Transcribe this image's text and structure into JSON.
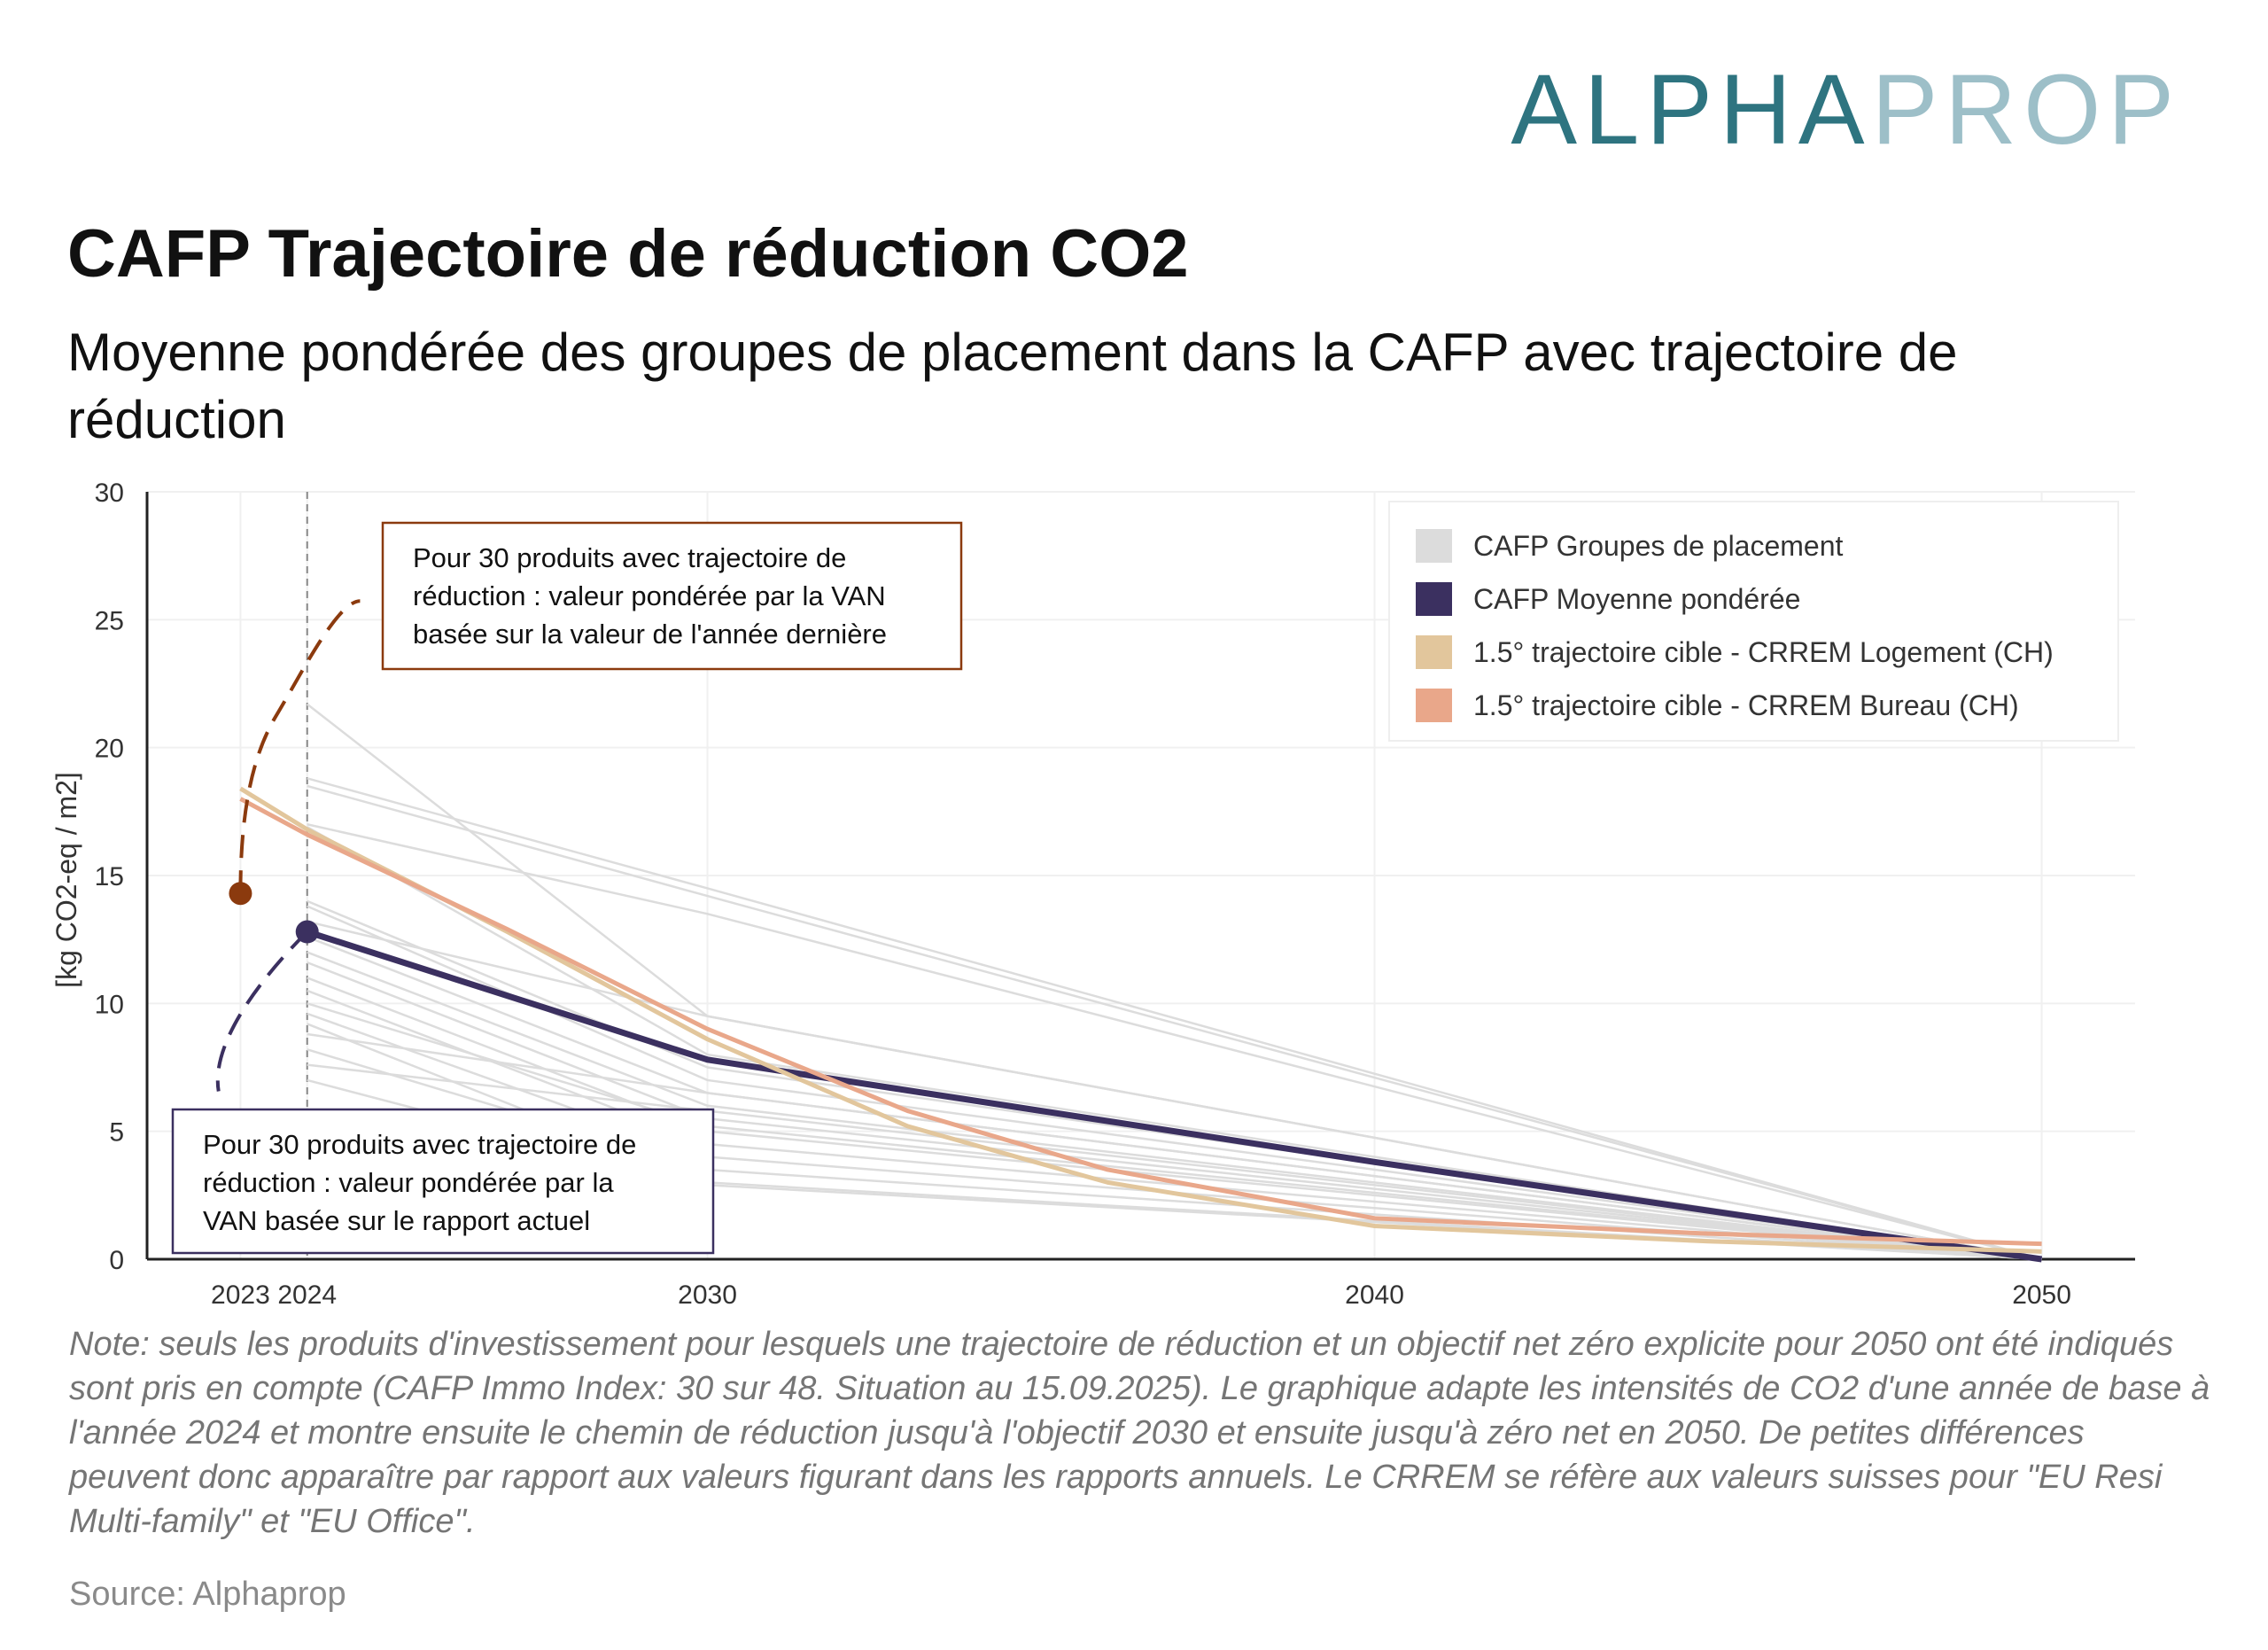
{
  "logo": [
    "ALPHA",
    "PROP"
  ],
  "chart_data": {
    "type": "line",
    "title": "CAFP Trajectoire de réduction CO2",
    "subtitle": [
      "Moyenne pondérée des groupes de placement dans la CAFP avec trajectoire de",
      "réduction"
    ],
    "y_label": "[kg CO2-eq / m2]",
    "xlim": [
      2021.6,
      2051.4
    ],
    "ylim": [
      0,
      30
    ],
    "xticks": [
      2023,
      2024,
      2030,
      2040,
      2050
    ],
    "yticks": [
      0,
      5,
      10,
      15,
      20,
      25,
      30
    ],
    "grid": true,
    "legend": "top-right",
    "vline": 2024,
    "series": [
      {
        "name": "CAFP Groupes de placement",
        "color": "#dcdcdc",
        "x": [
          2024,
          2030,
          2050
        ],
        "lines": [
          [
            21.7,
            9.5,
            0
          ],
          [
            18.8,
            14.5,
            0
          ],
          [
            18.5,
            14.2,
            0
          ],
          [
            17.0,
            13.5,
            0
          ],
          [
            16.9,
            8.0,
            0
          ],
          [
            14.0,
            7.5,
            0
          ],
          [
            13.8,
            7.0,
            0
          ],
          [
            13.2,
            9.5,
            0
          ],
          [
            12.6,
            6.5,
            0
          ],
          [
            12.0,
            6.0,
            0
          ],
          [
            11.6,
            5.5,
            0
          ],
          [
            11.0,
            5.0,
            0
          ],
          [
            10.5,
            4.5,
            0
          ],
          [
            10.0,
            5.2,
            0
          ],
          [
            9.6,
            4.0,
            0
          ],
          [
            9.2,
            3.0,
            0
          ],
          [
            8.8,
            6.5,
            0
          ],
          [
            8.2,
            3.5,
            0
          ],
          [
            7.6,
            5.8,
            0
          ],
          [
            7.0,
            2.9,
            0
          ]
        ]
      },
      {
        "name": "CAFP Moyenne pondérée",
        "color": "#3b3060",
        "x": [
          2024,
          2030,
          2040,
          2050
        ],
        "values": [
          12.8,
          7.8,
          3.8,
          0
        ]
      },
      {
        "name": "1.5° trajectoire cible - CRREM Logement (CH)",
        "color": "#e2c69c",
        "x": [
          2023,
          2024,
          2027,
          2030,
          2033,
          2036,
          2040,
          2045,
          2050
        ],
        "values": [
          18.4,
          16.8,
          12.8,
          8.6,
          5.2,
          3.0,
          1.3,
          0.7,
          0.3
        ]
      },
      {
        "name": "1.5° trajectoire cible - CRREM Bureau (CH)",
        "color": "#e9a78a",
        "x": [
          2023,
          2024,
          2027,
          2030,
          2033,
          2036,
          2040,
          2045,
          2050
        ],
        "values": [
          18.0,
          16.6,
          12.9,
          9.0,
          5.8,
          3.5,
          1.6,
          1.0,
          0.6
        ]
      }
    ],
    "annotations": [
      {
        "x": 2023,
        "y": 14.3,
        "color": "#8b3a0e",
        "lines": [
          "Pour 30 produits avec trajectoire de",
          "réduction : valeur pondérée par la VAN",
          "basée sur la valeur de l'année dernière"
        ]
      },
      {
        "x": 2024,
        "y": 12.8,
        "color": "#3b3060",
        "lines": [
          "Pour 30 produits avec trajectoire de",
          "réduction : valeur pondérée par la",
          "VAN basée sur le rapport actuel"
        ]
      }
    ],
    "note": "Note: seuls les produits d'investissement pour lesquels une trajectoire de réduction et un objectif net zéro explicite pour 2050 ont été indiqués sont pris en compte (CAFP Immo Index: 30 sur 48. Situation au 15.09.2025). Le graphique adapte les intensités de CO2 d'une année de base à l'année 2024 et montre ensuite le chemin de réduction jusqu'à l'objectif 2030 et ensuite jusqu'à zéro net en 2050. De petites différences peuvent donc apparaître par rapport aux valeurs figurant dans les rapports annuels. Le CRREM se réfère aux valeurs suisses pour \"EU Resi Multi-family\" et \"EU Office\".",
    "source": "Source: Alphaprop"
  }
}
